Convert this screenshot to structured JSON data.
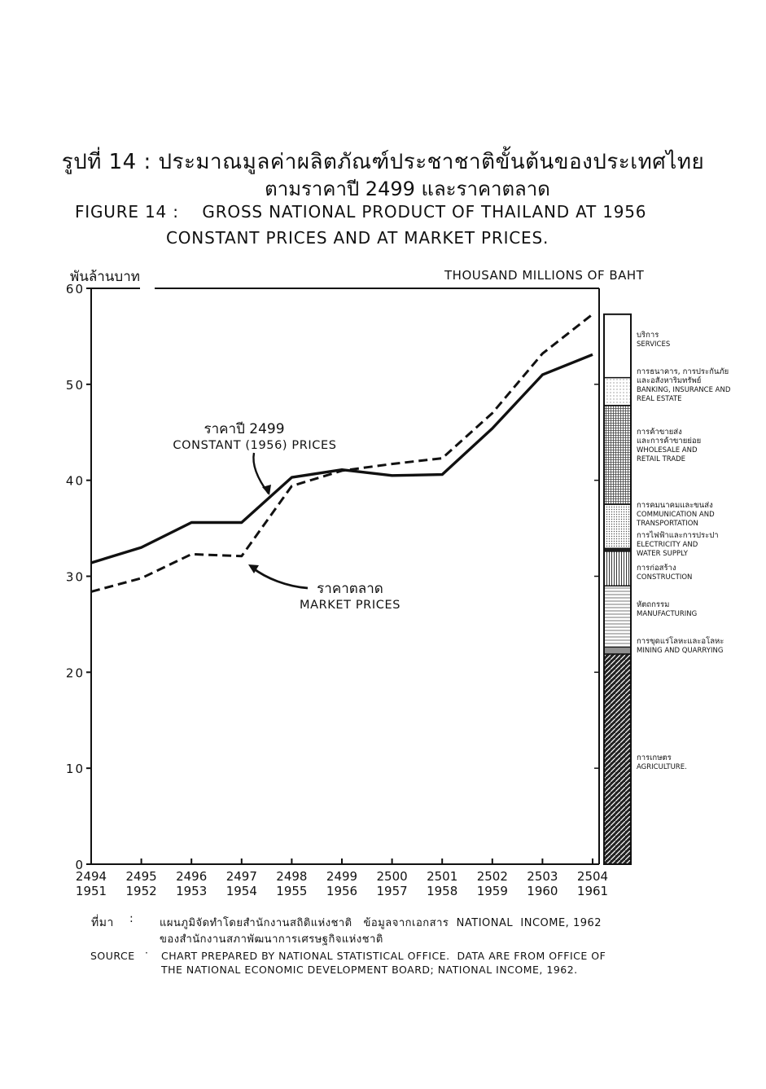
{
  "title": {
    "thai_line1": "รูปที่ 14 :   ประมาณมูลค่าผลิตภัณฑ์ประชาชาติขั้นต้นของประเทศไทย",
    "thai_line2": "ตามราคาปี 2499 และราคาตลาด",
    "en_line1": "FIGURE 14 :    GROSS NATIONAL PRODUCT OF THAILAND AT 1956",
    "en_line2": "CONSTANT PRICES AND AT MARKET PRICES."
  },
  "units": {
    "thai": "พันล้านบาท",
    "en": "THOUSAND MILLIONS OF BAHT"
  },
  "colors": {
    "ink": "#111111",
    "paper": "#ffffff"
  },
  "chart_data": {
    "type": "line",
    "x": [
      "2494",
      "2495",
      "2496",
      "2497",
      "2498",
      "2499",
      "2500",
      "2501",
      "2502",
      "2503",
      "2504"
    ],
    "x_labels_thai_year": [
      "2494",
      "2495",
      "2496",
      "2497",
      "2498",
      "2499",
      "2500",
      "2501",
      "2502",
      "2503",
      "2504"
    ],
    "x_labels_gregorian": [
      "1951",
      "1952",
      "1953",
      "1954",
      "1955",
      "1956",
      "1957",
      "1958",
      "1959",
      "1960",
      "1961"
    ],
    "ylim": [
      0,
      60
    ],
    "yticks": [
      "0",
      "10",
      "20",
      "30",
      "40",
      "50",
      "60"
    ],
    "grid": false,
    "series": [
      {
        "name": "ราคาปี 2499 CONSTANT (1956) PRICES",
        "style": "solid",
        "values": [
          31.4,
          33.0,
          35.6,
          35.6,
          40.3,
          41.1,
          40.5,
          40.6,
          45.4,
          51.0,
          53.1
        ]
      },
      {
        "name": "ราคาตลาด MARKET PRICES",
        "style": "dashed",
        "values": [
          28.4,
          29.8,
          32.3,
          32.1,
          39.4,
          41.0,
          41.7,
          42.3,
          47.0,
          53.2,
          57.3
        ]
      }
    ],
    "annotations": [
      {
        "series": 0,
        "thai": "ราคาปี 2499",
        "en": "CONSTANT (1956) PRICES"
      },
      {
        "series": 1,
        "thai": "ราคาตลาด",
        "en": "MARKET PRICES"
      }
    ],
    "stacked_bar": {
      "year": "2504",
      "total": 57.3,
      "segments": [
        {
          "thai": "การเกษตร",
          "en": "AGRICULTURE.",
          "from": 0,
          "to": 21.9,
          "pattern": "hatch-dense"
        },
        {
          "thai": "การขุดแร่โลหะและอโลหะ",
          "en": "MINING AND QUARRYING",
          "from": 21.9,
          "to": 22.6,
          "pattern": "hlines-dense"
        },
        {
          "thai": "หัตถกรรม",
          "en": "MANUFACTURING",
          "from": 22.6,
          "to": 29.0,
          "pattern": "hlines"
        },
        {
          "thai": "การก่อสร้าง",
          "en": "CONSTRUCTION",
          "from": 29.0,
          "to": 32.6,
          "pattern": "vlines"
        },
        {
          "thai": "การไฟฟ้าและการประปา",
          "en": "ELECTRICITY AND WATER SUPPLY",
          "from": 32.6,
          "to": 32.9,
          "pattern": "solid-dark"
        },
        {
          "thai": "การคมนาคมและขนส่ง",
          "en": "COMMUNICATION AND TRANSPORTATION",
          "from": 32.9,
          "to": 37.5,
          "pattern": "dots"
        },
        {
          "thai": "การค้าขายส่ง และการค้าขายย่อย",
          "en": "WHOLESALE AND RETAIL TRADE",
          "from": 37.5,
          "to": 47.8,
          "pattern": "grid"
        },
        {
          "thai": "การธนาคาร, การประกันภัย และอสังหาริมทรัพย์",
          "en": "BANKING, INSURANCE AND REAL ESTATE",
          "from": 47.8,
          "to": 50.7,
          "pattern": "dots-light"
        },
        {
          "thai": "บริการ",
          "en": "SERVICES",
          "from": 50.7,
          "to": 57.3,
          "pattern": "none"
        }
      ]
    }
  },
  "source": {
    "thai_label": "ที่มา",
    "thai_colon": ":",
    "thai_line1": "แผนภูมิจัดทำโดยสำนักงานสถิติแห่งชาติ   ข้อมูลจากเอกสาร  NATIONAL  INCOME, 1962",
    "thai_line2": "ของสำนักงานสภาพัฒนาการเศรษฐกิจแห่งชาติ",
    "en_label": "SOURCE",
    "en_dot": "·",
    "en_line1": "CHART PREPARED BY NATIONAL STATISTICAL OFFICE.  DATA ARE FROM OFFICE OF",
    "en_line2": "THE NATIONAL ECONOMIC DEVELOPMENT BOARD; NATIONAL INCOME, 1962."
  }
}
